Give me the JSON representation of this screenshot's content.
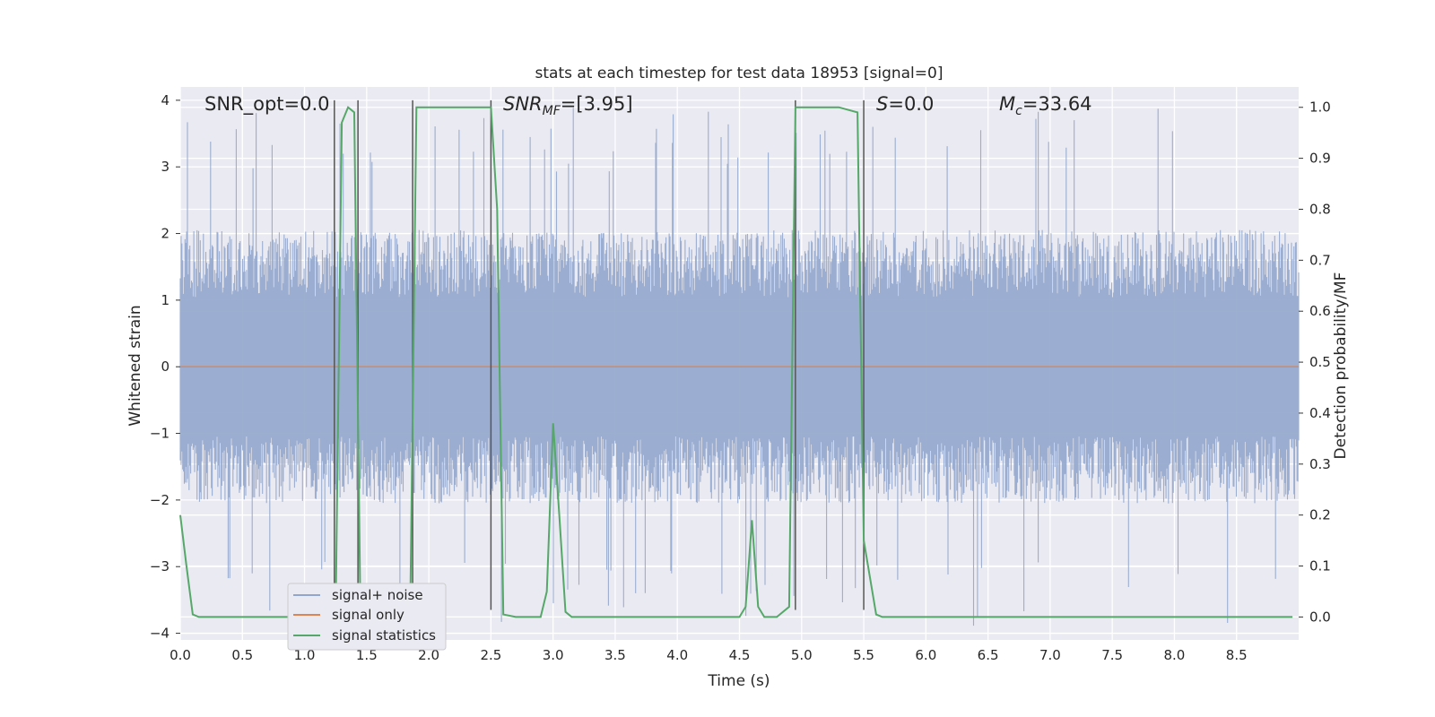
{
  "chart_data": {
    "type": "line",
    "title": "stats at each timestep for test data 18953 [signal=0]",
    "xlabel": "Time (s)",
    "ylabel": "Whitened strain",
    "y2label": "Detection probability/MF",
    "xlim": [
      0.0,
      9.0
    ],
    "ylim": [
      -4.1,
      4.2
    ],
    "y2lim": [
      -0.045,
      1.04
    ],
    "xticks": [
      "0.0",
      "0.5",
      "1.0",
      "1.5",
      "2.0",
      "2.5",
      "3.0",
      "3.5",
      "4.0",
      "4.5",
      "5.0",
      "5.5",
      "6.0",
      "6.5",
      "7.0",
      "7.5",
      "8.0",
      "8.5"
    ],
    "yticks": [
      "4",
      "3",
      "2",
      "1",
      "0",
      "−1",
      "−2",
      "−3",
      "−4"
    ],
    "y2ticks": [
      "1.0",
      "0.9",
      "0.8",
      "0.7",
      "0.6",
      "0.5",
      "0.4",
      "0.3",
      "0.2",
      "0.1",
      "0.0"
    ],
    "grid": true,
    "legend_position": "lower-left",
    "annotations": {
      "snr_opt": "SNR_opt=0.0",
      "snr_mf_main": "SNR",
      "snr_mf_sub": "MF",
      "snr_mf_rest": "=[3.95]",
      "s_sym": "S",
      "s_rest": "=0.0",
      "mc_sym": "M",
      "mc_sub": "c",
      "mc_rest": "=33.64"
    },
    "series": [
      {
        "name": "signal+ noise",
        "color": "#92a6cc",
        "description_values": "noise band",
        "envelope_typical": 1.9,
        "envelope_peak": 3.9
      },
      {
        "name": "signal only",
        "color": "#dd8452",
        "x": [
          0.0,
          9.0
        ],
        "y": [
          0.0,
          0.0
        ]
      },
      {
        "name": "signal statistics",
        "color": "#55a868",
        "axis": "right",
        "x": [
          0.0,
          0.05,
          0.1,
          0.15,
          0.3,
          0.5,
          0.7,
          0.9,
          1.1,
          1.2,
          1.25,
          1.3,
          1.35,
          1.4,
          1.45,
          1.5,
          1.55,
          1.6,
          1.7,
          1.8,
          1.85,
          1.9,
          1.95,
          2.0,
          2.1,
          2.2,
          2.3,
          2.4,
          2.5,
          2.55,
          2.6,
          2.7,
          2.8,
          2.9,
          2.95,
          3.0,
          3.05,
          3.1,
          3.15,
          3.2,
          3.5,
          4.0,
          4.5,
          4.55,
          4.6,
          4.65,
          4.7,
          4.8,
          4.9,
          4.95,
          5.0,
          5.1,
          5.3,
          5.45,
          5.5,
          5.6,
          5.65,
          5.7,
          6.0,
          7.0,
          8.0,
          8.95
        ],
        "y": [
          0.2,
          0.1,
          0.005,
          0.0,
          0.0,
          0.0,
          0.0,
          0.0,
          0.0,
          0.0,
          0.0,
          0.97,
          1.0,
          0.99,
          0.0,
          0.0,
          0.0,
          0.0,
          0.0,
          0.0,
          0.0,
          1.0,
          1.0,
          1.0,
          1.0,
          1.0,
          1.0,
          1.0,
          1.0,
          0.8,
          0.005,
          0.0,
          0.0,
          0.0,
          0.05,
          0.38,
          0.2,
          0.01,
          0.0,
          0.0,
          0.0,
          0.0,
          0.0,
          0.02,
          0.19,
          0.02,
          0.0,
          0.0,
          0.02,
          1.0,
          1.0,
          1.0,
          1.0,
          0.99,
          0.15,
          0.005,
          0.0,
          0.0,
          0.0,
          0.0,
          0.0,
          0.0
        ]
      }
    ],
    "vertical_markers_x": [
      1.24,
      1.43,
      1.87,
      2.5,
      4.95,
      5.5
    ]
  }
}
